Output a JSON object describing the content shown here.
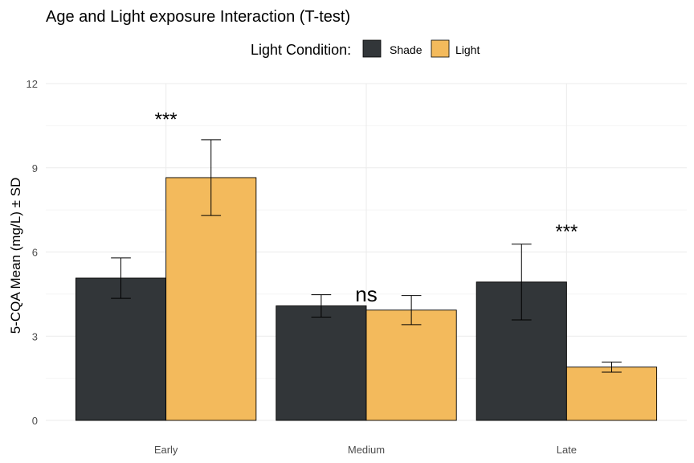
{
  "chart_data": {
    "type": "bar",
    "title": "Age and Light exposure Interaction (T-test)",
    "xlabel": "",
    "ylabel": "5-CQA Mean (mg/L) ± SD",
    "ylim": [
      0,
      12
    ],
    "yticks": [
      0,
      3,
      6,
      9,
      12
    ],
    "grid": true,
    "legend": {
      "title": "Light Condition:",
      "position": "top",
      "entries": [
        "Shade",
        "Light"
      ]
    },
    "categories": [
      "Early",
      "Medium",
      "Late"
    ],
    "series": [
      {
        "name": "Shade",
        "color": "#323639",
        "values": [
          5.07,
          4.08,
          4.93
        ],
        "sd": [
          0.72,
          0.4,
          1.35
        ]
      },
      {
        "name": "Light",
        "color": "#F3BA5C",
        "values": [
          8.65,
          3.93,
          1.9
        ],
        "sd": [
          1.35,
          0.52,
          0.18
        ]
      }
    ],
    "annotations": [
      {
        "category": "Early",
        "text": "***",
        "y": 10.9
      },
      {
        "category": "Medium",
        "text": "ns",
        "y": 4.5
      },
      {
        "category": "Late",
        "text": "***",
        "y": 6.9
      }
    ]
  }
}
